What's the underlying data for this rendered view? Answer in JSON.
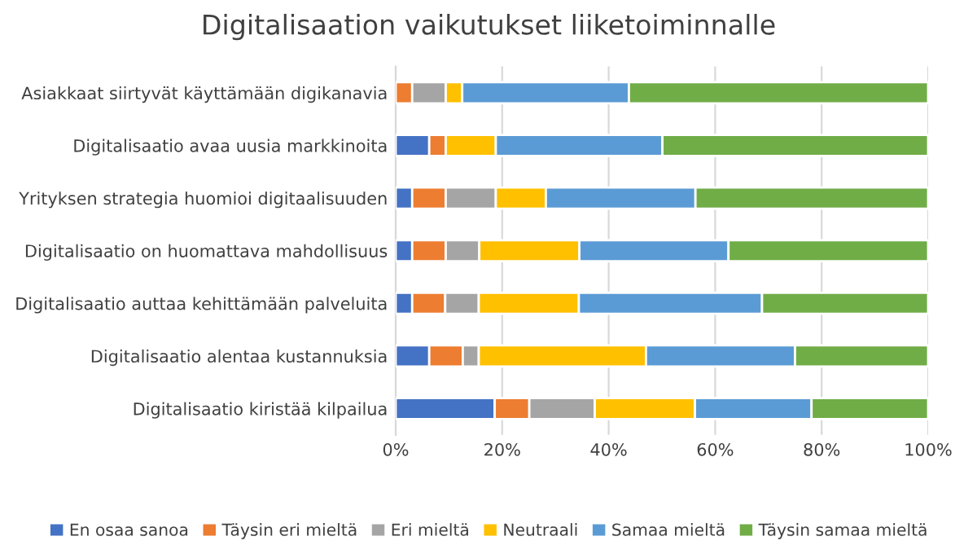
{
  "chart_data": {
    "type": "bar",
    "orientation": "horizontal",
    "stacked": true,
    "title": "Digitalisaation vaikutukset liiketoiminnalle",
    "categories": [
      "Asiakkaat siirtyvät käyttämään digikanavia",
      "Digitalisaatio avaa uusia markkinoita",
      "Yrityksen strategia huomioi digitaalisuuden",
      "Digitalisaatio on huomattava mahdollisuus",
      "Digitalisaatio auttaa kehittämään palveluita",
      "Digitalisaatio alentaa kustannuksia",
      "Digitalisaatio kiristää kilpailua"
    ],
    "series": [
      {
        "name": "En osaa sanoa",
        "color": "#4472c4",
        "values": [
          0,
          6.3,
          3.1,
          3.1,
          3.1,
          6.3,
          18.6
        ]
      },
      {
        "name": "Täysin eri mieltä",
        "color": "#ed7d31",
        "values": [
          3.1,
          3.1,
          6.3,
          6.3,
          6.2,
          6.3,
          6.5
        ]
      },
      {
        "name": "Eri mieltä",
        "color": "#a5a5a5",
        "values": [
          6.3,
          0,
          9.4,
          6.3,
          6.3,
          3.0,
          12.3
        ]
      },
      {
        "name": "Neutraali",
        "color": "#ffc000",
        "values": [
          3.1,
          9.4,
          9.4,
          18.8,
          18.8,
          31.4,
          18.8
        ]
      },
      {
        "name": "Samaa mieltä",
        "color": "#5b9bd5",
        "values": [
          31.3,
          31.3,
          28.1,
          28.0,
          34.4,
          28.0,
          21.9
        ]
      },
      {
        "name": "Täysin samaa mieltä",
        "color": "#70ad47",
        "values": [
          56.2,
          49.9,
          43.7,
          37.5,
          31.2,
          25.0,
          21.9
        ]
      }
    ],
    "xlim": [
      0,
      100
    ],
    "xticks": [
      {
        "value": 0,
        "label": "0%"
      },
      {
        "value": 20,
        "label": "20%"
      },
      {
        "value": 40,
        "label": "40%"
      },
      {
        "value": 60,
        "label": "60%"
      },
      {
        "value": 80,
        "label": "80%"
      },
      {
        "value": 100,
        "label": "100%"
      }
    ],
    "grid": "x",
    "legend": "bottom"
  }
}
